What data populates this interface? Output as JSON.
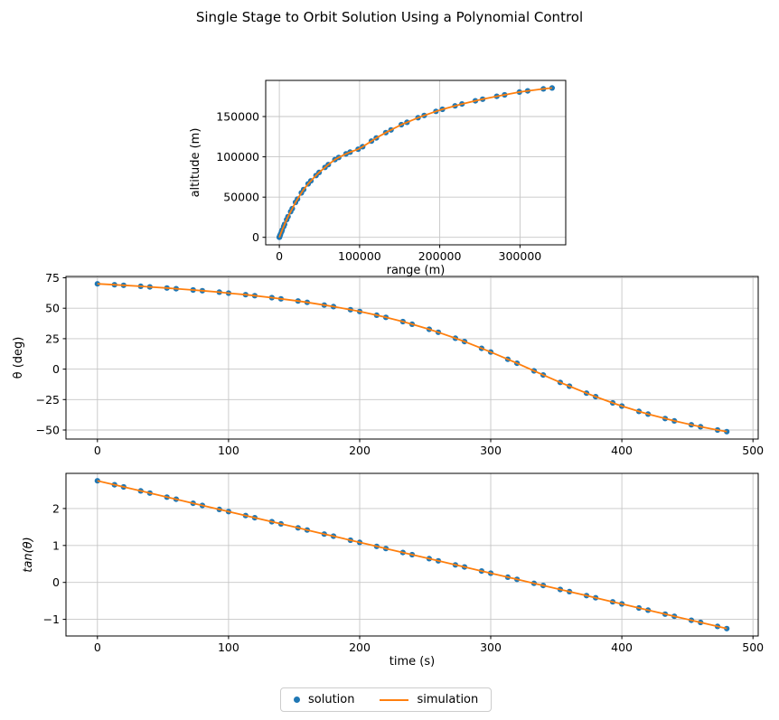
{
  "title": "Single Stage to Orbit Solution Using a Polynomial Control",
  "colors": {
    "solution": "#1f77b4",
    "simulation": "#ff7f0e",
    "grid": "#c6c6c6",
    "spine": "#000000"
  },
  "legend": {
    "items": [
      {
        "label": "solution",
        "marker": "dot"
      },
      {
        "label": "simulation",
        "marker": "line"
      }
    ],
    "position": "bottom-center"
  },
  "chart_data": [
    {
      "type": "scatter+line",
      "xlabel": "range (m)",
      "ylabel": "altitude (m)",
      "xlim": [
        -17000,
        357000
      ],
      "ylim": [
        -9280,
        194900
      ],
      "xticks": [
        0,
        100000,
        200000,
        300000
      ],
      "yticks": [
        0,
        50000,
        100000,
        150000
      ],
      "grid": true,
      "series": [
        {
          "name": "solution",
          "marker": "dot"
        },
        {
          "name": "simulation",
          "marker": "line"
        }
      ],
      "x": [
        0,
        121,
        313,
        940,
        1440,
        2670,
        3510,
        5400,
        6600,
        9170,
        10790,
        14100,
        16100,
        20200,
        22600,
        27500,
        30300,
        36000,
        39300,
        45800,
        49600,
        56900,
        61100,
        69300,
        74000,
        83100,
        88200,
        98200,
        103900,
        114800,
        120900,
        132700,
        139300,
        152100,
        159200,
        172900,
        180600,
        195200,
        203400,
        219000,
        227700,
        244300,
        253500,
        271000,
        280800,
        299300,
        309600,
        329200,
        340000
      ],
      "y": [
        0,
        330,
        850,
        2500,
        3800,
        6900,
        9000,
        13400,
        16200,
        22000,
        25700,
        31900,
        35600,
        43400,
        47600,
        55200,
        59400,
        66500,
        70200,
        76800,
        80600,
        86900,
        90300,
        96500,
        99200,
        103700,
        105800,
        109400,
        112500,
        119500,
        123400,
        130000,
        133400,
        139900,
        142900,
        148600,
        151400,
        156400,
        159000,
        163300,
        165600,
        169600,
        171600,
        175200,
        177000,
        180400,
        181900,
        184400,
        185500
      ]
    },
    {
      "type": "scatter+line",
      "xlabel": "",
      "ylabel": "θ (deg)",
      "xlim": [
        -24,
        504
      ],
      "ylim": [
        -57.4,
        76.1
      ],
      "xticks": [
        0,
        100,
        200,
        300,
        400,
        500
      ],
      "yticks": [
        75,
        50,
        25,
        0,
        -25,
        -50
      ],
      "grid": true,
      "series": [
        {
          "name": "solution",
          "marker": "dot"
        },
        {
          "name": "simulation",
          "marker": "line"
        }
      ],
      "x": [
        0,
        13,
        20,
        33,
        40,
        53,
        60,
        73,
        80,
        93,
        100,
        113,
        120,
        133,
        140,
        153,
        160,
        173,
        180,
        193,
        200,
        213,
        220,
        233,
        240,
        253,
        260,
        273,
        280,
        293,
        300,
        313,
        320,
        333,
        340,
        353,
        360,
        373,
        380,
        393,
        400,
        413,
        420,
        433,
        440,
        453,
        460,
        473,
        480
      ],
      "y": [
        70,
        69.3,
        68.8,
        68,
        67.5,
        66.6,
        66,
        65,
        64.4,
        63.2,
        62.4,
        61.1,
        60.3,
        58.7,
        57.7,
        55.9,
        54.8,
        52.6,
        51.3,
        48.8,
        47.3,
        44.3,
        42.5,
        39,
        36.9,
        32.7,
        30.3,
        25.4,
        22.6,
        17.1,
        14,
        8.1,
        4.8,
        -1.4,
        -4.8,
        -10.9,
        -14,
        -19.7,
        -22.6,
        -27.7,
        -30.3,
        -34.7,
        -36.9,
        -40.6,
        -42.5,
        -45.7,
        -47.3,
        -50,
        -51.3
      ]
    },
    {
      "type": "scatter+line",
      "xlabel": "time (s)",
      "ylabel": "tan(θ)",
      "xlim": [
        -24,
        504
      ],
      "ylim": [
        -1.45,
        2.95
      ],
      "xticks": [
        0,
        100,
        200,
        300,
        400,
        500
      ],
      "yticks": [
        2,
        1,
        0,
        -1
      ],
      "grid": true,
      "series": [
        {
          "name": "solution",
          "marker": "dot"
        },
        {
          "name": "simulation",
          "marker": "line"
        }
      ],
      "x": [
        0,
        13,
        20,
        33,
        40,
        53,
        60,
        73,
        80,
        93,
        100,
        113,
        120,
        133,
        140,
        153,
        160,
        173,
        180,
        193,
        200,
        213,
        220,
        233,
        240,
        253,
        260,
        273,
        280,
        293,
        300,
        313,
        320,
        333,
        340,
        353,
        360,
        373,
        380,
        393,
        400,
        413,
        420,
        433,
        440,
        453,
        460,
        473,
        480
      ],
      "y": [
        2.75,
        2.642,
        2.583,
        2.475,
        2.417,
        2.308,
        2.25,
        2.142,
        2.083,
        1.975,
        1.917,
        1.808,
        1.75,
        1.642,
        1.583,
        1.475,
        1.417,
        1.308,
        1.25,
        1.142,
        1.083,
        0.975,
        0.917,
        0.808,
        0.75,
        0.642,
        0.583,
        0.475,
        0.417,
        0.308,
        0.25,
        0.142,
        0.083,
        -0.025,
        -0.083,
        -0.192,
        -0.25,
        -0.358,
        -0.417,
        -0.525,
        -0.583,
        -0.692,
        -0.75,
        -0.858,
        -0.917,
        -1.025,
        -1.083,
        -1.192,
        -1.25
      ]
    }
  ]
}
